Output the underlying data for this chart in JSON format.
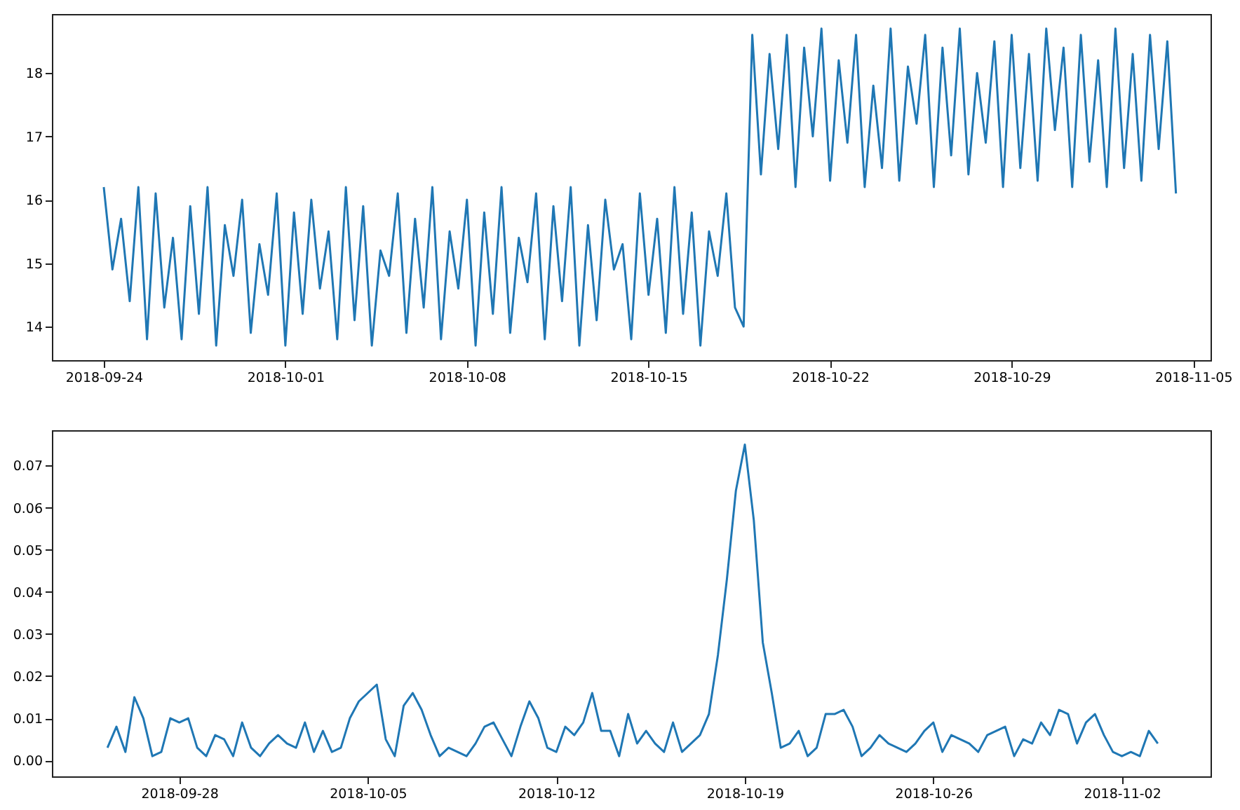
{
  "chart_data": [
    {
      "type": "line",
      "xlim": [
        "2018-09-22",
        "2018-11-05T16:00"
      ],
      "ylim": [
        13.47,
        18.93
      ],
      "xticks": [
        "2018-09-24",
        "2018-10-01",
        "2018-10-08",
        "2018-10-15",
        "2018-10-22",
        "2018-10-29",
        "2018-11-05"
      ],
      "yticks": [
        14,
        15,
        16,
        17,
        18
      ],
      "series": [
        {
          "color": "#1f77b4",
          "x": [
            "2018-09-24T00:00",
            "2018-09-24T08:00",
            "2018-09-24T16:00",
            "2018-09-25T00:00",
            "2018-09-25T08:00",
            "2018-09-25T16:00",
            "2018-09-26T00:00",
            "2018-09-26T08:00",
            "2018-09-26T16:00",
            "2018-09-27T00:00",
            "2018-09-27T08:00",
            "2018-09-27T16:00",
            "2018-09-28T00:00",
            "2018-09-28T08:00",
            "2018-09-28T16:00",
            "2018-09-29T00:00",
            "2018-09-29T08:00",
            "2018-09-29T16:00",
            "2018-09-30T00:00",
            "2018-09-30T08:00",
            "2018-09-30T16:00",
            "2018-10-01T00:00",
            "2018-10-01T08:00",
            "2018-10-01T16:00",
            "2018-10-02T00:00",
            "2018-10-02T08:00",
            "2018-10-02T16:00",
            "2018-10-03T00:00",
            "2018-10-03T08:00",
            "2018-10-03T16:00",
            "2018-10-04T00:00",
            "2018-10-04T08:00",
            "2018-10-04T16:00",
            "2018-10-05T00:00",
            "2018-10-05T08:00",
            "2018-10-05T16:00",
            "2018-10-06T00:00",
            "2018-10-06T08:00",
            "2018-10-06T16:00",
            "2018-10-07T00:00",
            "2018-10-07T08:00",
            "2018-10-07T16:00",
            "2018-10-08T00:00",
            "2018-10-08T08:00",
            "2018-10-08T16:00",
            "2018-10-09T00:00",
            "2018-10-09T08:00",
            "2018-10-09T16:00",
            "2018-10-10T00:00",
            "2018-10-10T08:00",
            "2018-10-10T16:00",
            "2018-10-11T00:00",
            "2018-10-11T08:00",
            "2018-10-11T16:00",
            "2018-10-12T00:00",
            "2018-10-12T08:00",
            "2018-10-12T16:00",
            "2018-10-13T00:00",
            "2018-10-13T08:00",
            "2018-10-13T16:00",
            "2018-10-14T00:00",
            "2018-10-14T08:00",
            "2018-10-14T16:00",
            "2018-10-15T00:00",
            "2018-10-15T08:00",
            "2018-10-15T16:00",
            "2018-10-16T00:00",
            "2018-10-16T08:00",
            "2018-10-16T16:00",
            "2018-10-17T00:00",
            "2018-10-17T08:00",
            "2018-10-17T16:00",
            "2018-10-18T00:00",
            "2018-10-18T08:00",
            "2018-10-18T16:00",
            "2018-10-19T00:00",
            "2018-10-19T08:00",
            "2018-10-19T16:00",
            "2018-10-20T00:00",
            "2018-10-20T08:00",
            "2018-10-20T16:00",
            "2018-10-21T00:00",
            "2018-10-21T08:00",
            "2018-10-21T16:00",
            "2018-10-22T00:00",
            "2018-10-22T08:00",
            "2018-10-22T16:00",
            "2018-10-23T00:00",
            "2018-10-23T08:00",
            "2018-10-23T16:00",
            "2018-10-24T00:00",
            "2018-10-24T08:00",
            "2018-10-24T16:00",
            "2018-10-25T00:00",
            "2018-10-25T08:00",
            "2018-10-25T16:00",
            "2018-10-26T00:00",
            "2018-10-26T08:00",
            "2018-10-26T16:00",
            "2018-10-27T00:00",
            "2018-10-27T08:00",
            "2018-10-27T16:00",
            "2018-10-28T00:00",
            "2018-10-28T08:00",
            "2018-10-28T16:00",
            "2018-10-29T00:00",
            "2018-10-29T08:00",
            "2018-10-29T16:00",
            "2018-10-30T00:00",
            "2018-10-30T08:00",
            "2018-10-30T16:00",
            "2018-10-31T00:00",
            "2018-10-31T08:00",
            "2018-10-31T16:00",
            "2018-11-01T00:00",
            "2018-11-01T08:00",
            "2018-11-01T16:00",
            "2018-11-02T00:00",
            "2018-11-02T08:00",
            "2018-11-02T16:00",
            "2018-11-03T00:00",
            "2018-11-03T08:00",
            "2018-11-03T16:00",
            "2018-11-04T00:00",
            "2018-11-04T08:00"
          ],
          "values": [
            16.2,
            14.9,
            15.7,
            14.4,
            16.2,
            13.8,
            16.1,
            14.3,
            15.4,
            13.8,
            15.9,
            14.2,
            16.2,
            13.7,
            15.6,
            14.8,
            16.0,
            13.9,
            15.3,
            14.5,
            16.1,
            13.7,
            15.8,
            14.2,
            16.0,
            14.6,
            15.5,
            13.8,
            16.2,
            14.1,
            15.9,
            13.7,
            15.2,
            14.8,
            16.1,
            13.9,
            15.7,
            14.3,
            16.2,
            13.8,
            15.5,
            14.6,
            16.0,
            13.7,
            15.8,
            14.2,
            16.2,
            13.9,
            15.4,
            14.7,
            16.1,
            13.8,
            15.9,
            14.4,
            16.2,
            13.7,
            15.6,
            14.1,
            16.0,
            14.9,
            15.3,
            13.8,
            16.1,
            14.5,
            15.7,
            13.9,
            16.2,
            14.2,
            15.8,
            13.7,
            15.5,
            14.8,
            16.1,
            14.3,
            14.0,
            18.6,
            16.4,
            18.3,
            16.8,
            18.6,
            16.2,
            18.4,
            17.0,
            18.7,
            16.3,
            18.2,
            16.9,
            18.6,
            16.2,
            17.8,
            16.5,
            18.7,
            16.3,
            18.1,
            17.2,
            18.6,
            16.2,
            18.4,
            16.7,
            18.7,
            16.4,
            18.0,
            16.9,
            18.5,
            16.2,
            18.6,
            16.5,
            18.3,
            16.3,
            18.7,
            17.1,
            18.4,
            16.2,
            18.6,
            16.6,
            18.2,
            16.2,
            18.7,
            16.5,
            18.3,
            16.3,
            18.6,
            16.8,
            18.5,
            16.1
          ]
        }
      ]
    },
    {
      "type": "line",
      "xlim": [
        "2018-09-23T06:30",
        "2018-11-05T07:00"
      ],
      "ylim": [
        -0.0038,
        0.0784
      ],
      "xticks": [
        "2018-09-28",
        "2018-10-05",
        "2018-10-12",
        "2018-10-19",
        "2018-10-26",
        "2018-11-02"
      ],
      "yticks": [
        {
          "value": 0,
          "label": "0.00"
        },
        {
          "value": 0.01,
          "label": "0.01"
        },
        {
          "value": 0.02,
          "label": "0.02"
        },
        {
          "value": 0.03,
          "label": "0.03"
        },
        {
          "value": 0.04,
          "label": "0.04"
        },
        {
          "value": 0.05,
          "label": "0.05"
        },
        {
          "value": 0.06,
          "label": "0.06"
        },
        {
          "value": 0.07,
          "label": "0.07"
        }
      ],
      "series": [
        {
          "color": "#1f77b4",
          "x": [
            "2018-09-25T08:00",
            "2018-09-25T16:00",
            "2018-09-26T00:00",
            "2018-09-26T08:00",
            "2018-09-26T16:00",
            "2018-09-27T00:00",
            "2018-09-27T08:00",
            "2018-09-27T16:00",
            "2018-09-28T00:00",
            "2018-09-28T08:00",
            "2018-09-28T16:00",
            "2018-09-29T00:00",
            "2018-09-29T08:00",
            "2018-09-29T16:00",
            "2018-09-30T00:00",
            "2018-09-30T08:00",
            "2018-09-30T16:00",
            "2018-10-01T00:00",
            "2018-10-01T08:00",
            "2018-10-01T16:00",
            "2018-10-02T00:00",
            "2018-10-02T08:00",
            "2018-10-02T16:00",
            "2018-10-03T00:00",
            "2018-10-03T08:00",
            "2018-10-03T16:00",
            "2018-10-04T00:00",
            "2018-10-04T08:00",
            "2018-10-04T16:00",
            "2018-10-05T00:00",
            "2018-10-05T08:00",
            "2018-10-05T16:00",
            "2018-10-06T00:00",
            "2018-10-06T08:00",
            "2018-10-06T16:00",
            "2018-10-07T00:00",
            "2018-10-07T08:00",
            "2018-10-07T16:00",
            "2018-10-08T00:00",
            "2018-10-08T08:00",
            "2018-10-08T16:00",
            "2018-10-09T00:00",
            "2018-10-09T08:00",
            "2018-10-09T16:00",
            "2018-10-10T00:00",
            "2018-10-10T08:00",
            "2018-10-10T16:00",
            "2018-10-11T00:00",
            "2018-10-11T08:00",
            "2018-10-11T16:00",
            "2018-10-12T00:00",
            "2018-10-12T08:00",
            "2018-10-12T16:00",
            "2018-10-13T00:00",
            "2018-10-13T08:00",
            "2018-10-13T16:00",
            "2018-10-14T00:00",
            "2018-10-14T08:00",
            "2018-10-14T16:00",
            "2018-10-15T00:00",
            "2018-10-15T08:00",
            "2018-10-15T16:00",
            "2018-10-16T00:00",
            "2018-10-16T08:00",
            "2018-10-16T16:00",
            "2018-10-17T00:00",
            "2018-10-17T08:00",
            "2018-10-17T16:00",
            "2018-10-18T00:00",
            "2018-10-18T08:00",
            "2018-10-18T16:00",
            "2018-10-19T00:00",
            "2018-10-19T08:00",
            "2018-10-19T16:00",
            "2018-10-20T00:00",
            "2018-10-20T08:00",
            "2018-10-20T16:00",
            "2018-10-21T00:00",
            "2018-10-21T08:00",
            "2018-10-21T16:00",
            "2018-10-22T00:00",
            "2018-10-22T08:00",
            "2018-10-22T16:00",
            "2018-10-23T00:00",
            "2018-10-23T08:00",
            "2018-10-23T16:00",
            "2018-10-24T00:00",
            "2018-10-24T08:00",
            "2018-10-24T16:00",
            "2018-10-25T00:00",
            "2018-10-25T08:00",
            "2018-10-25T16:00",
            "2018-10-26T00:00",
            "2018-10-26T08:00",
            "2018-10-26T16:00",
            "2018-10-27T00:00",
            "2018-10-27T08:00",
            "2018-10-27T16:00",
            "2018-10-28T00:00",
            "2018-10-28T08:00",
            "2018-10-28T16:00",
            "2018-10-29T00:00",
            "2018-10-29T08:00",
            "2018-10-29T16:00",
            "2018-10-30T00:00",
            "2018-10-30T08:00",
            "2018-10-30T16:00",
            "2018-10-31T00:00",
            "2018-10-31T08:00",
            "2018-10-31T16:00",
            "2018-11-01T00:00",
            "2018-11-01T08:00",
            "2018-11-01T16:00",
            "2018-11-02T00:00",
            "2018-11-02T08:00",
            "2018-11-02T16:00",
            "2018-11-03T00:00",
            "2018-11-03T08:00"
          ],
          "values": [
            0.003,
            0.008,
            0.002,
            0.015,
            0.01,
            0.001,
            0.002,
            0.01,
            0.009,
            0.01,
            0.003,
            0.001,
            0.006,
            0.005,
            0.001,
            0.009,
            0.003,
            0.001,
            0.004,
            0.006,
            0.004,
            0.003,
            0.009,
            0.002,
            0.007,
            0.002,
            0.003,
            0.01,
            0.014,
            0.016,
            0.018,
            0.005,
            0.001,
            0.013,
            0.016,
            0.012,
            0.006,
            0.001,
            0.003,
            0.002,
            0.001,
            0.004,
            0.008,
            0.009,
            0.005,
            0.001,
            0.008,
            0.014,
            0.01,
            0.003,
            0.002,
            0.008,
            0.006,
            0.009,
            0.016,
            0.007,
            0.007,
            0.001,
            0.011,
            0.004,
            0.007,
            0.004,
            0.002,
            0.009,
            0.002,
            0.004,
            0.006,
            0.011,
            0.025,
            0.043,
            0.064,
            0.075,
            0.057,
            0.028,
            0.016,
            0.003,
            0.004,
            0.007,
            0.001,
            0.003,
            0.011,
            0.011,
            0.012,
            0.008,
            0.001,
            0.003,
            0.006,
            0.004,
            0.003,
            0.002,
            0.004,
            0.007,
            0.009,
            0.002,
            0.006,
            0.005,
            0.004,
            0.002,
            0.006,
            0.007,
            0.008,
            0.001,
            0.005,
            0.004,
            0.009,
            0.006,
            0.012,
            0.011,
            0.004,
            0.009,
            0.011,
            0.006,
            0.002,
            0.001,
            0.002,
            0.001,
            0.007,
            0.004
          ]
        }
      ]
    }
  ]
}
